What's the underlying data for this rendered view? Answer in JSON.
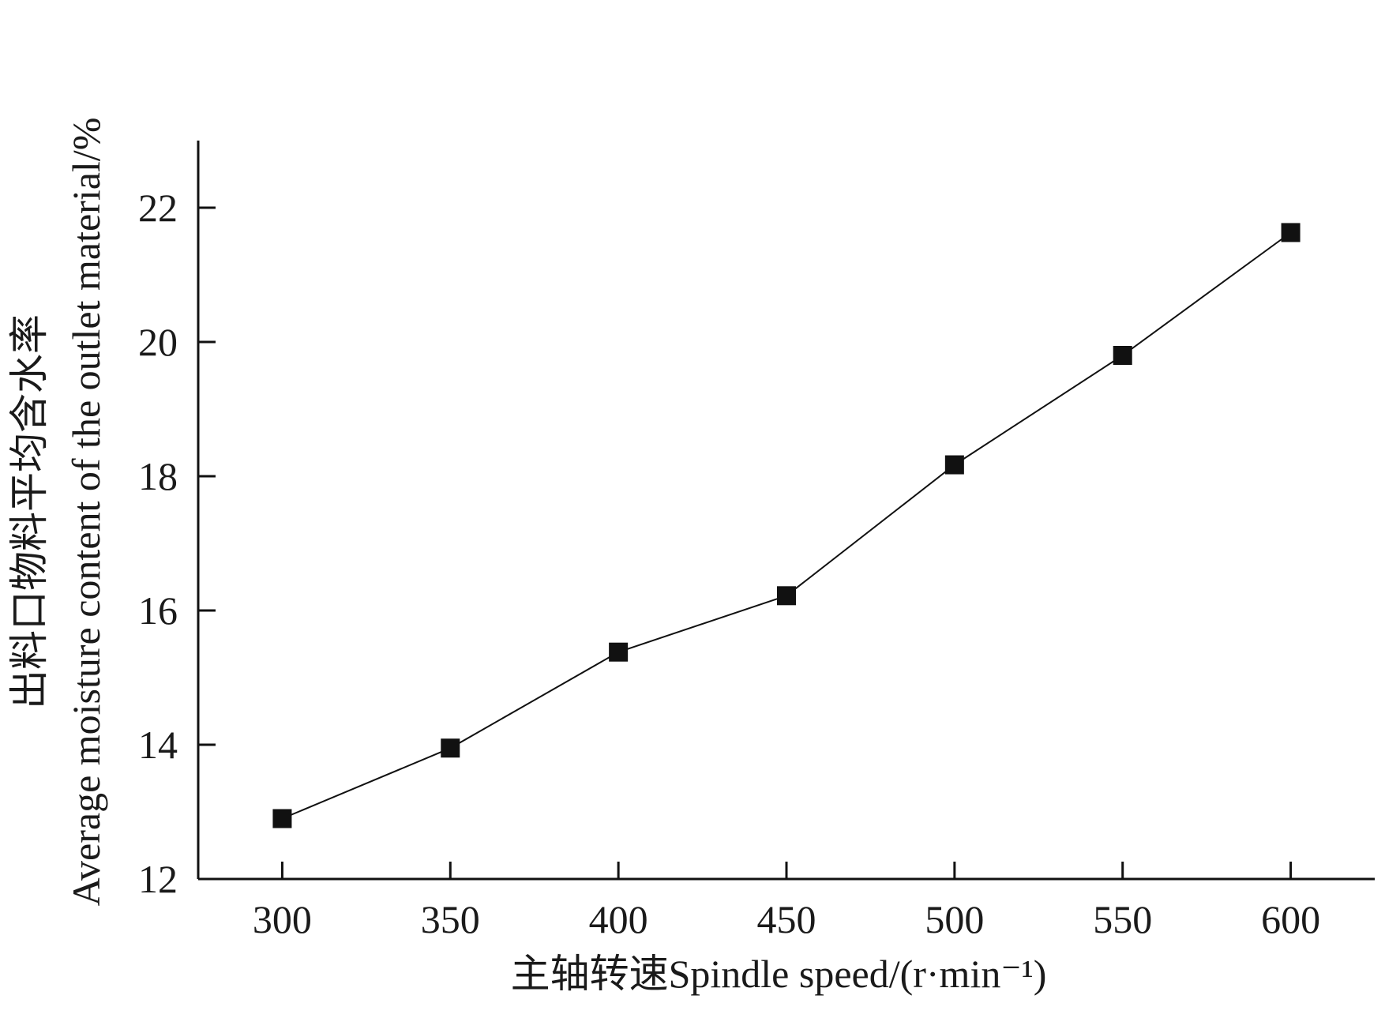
{
  "chart_data": {
    "type": "line",
    "title": "",
    "xlabel": "主轴转速Spindle speed/(r·min⁻¹)",
    "ylabel_cn": "出料口物料平均含水率",
    "ylabel_en": "Average moisture content of the outlet material/%",
    "x_ticks": [
      "300",
      "350",
      "400",
      "450",
      "500",
      "550",
      "600"
    ],
    "y_ticks": [
      "12",
      "14",
      "16",
      "18",
      "20",
      "22"
    ],
    "xlim": [
      275,
      625
    ],
    "ylim": [
      12,
      23
    ],
    "grid": false,
    "marker": "square",
    "color": "#111111",
    "series": [
      {
        "x": [
          300,
          350,
          400,
          450,
          500,
          550,
          600
        ],
        "values": [
          12.9,
          13.95,
          15.38,
          16.22,
          18.17,
          19.8,
          21.63
        ]
      }
    ]
  }
}
